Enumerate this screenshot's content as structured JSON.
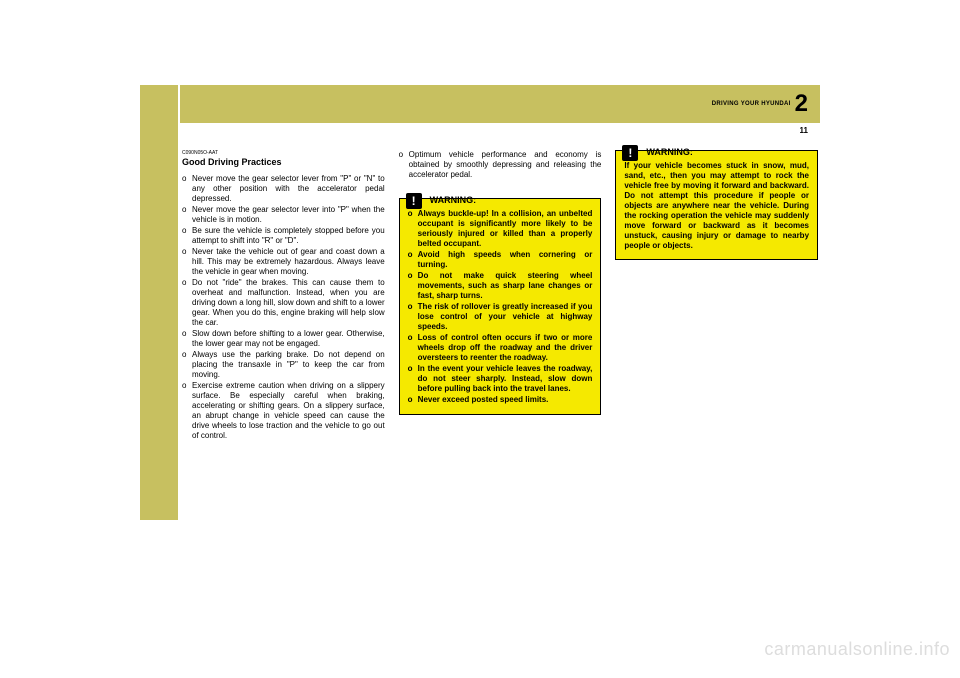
{
  "header": {
    "section_title": "DRIVING YOUR HYUNDAI",
    "section_number": "2",
    "page_number": "11"
  },
  "colors": {
    "band": "#c7c060",
    "warning_bg": "#f5e900",
    "border": "#000000",
    "watermark": "#dddddd"
  },
  "col1": {
    "code": "C090N05O-AAT",
    "heading": "Good Driving Practices",
    "items": [
      "Never move the gear selector lever from \"P\" or \"N\" to any other position with the accelerator pedal depressed.",
      "Never move the gear selector lever into \"P\" when the vehicle is in motion.",
      "Be sure the vehicle is completely stopped before you attempt to shift into \"R\" or \"D\".",
      "Never take the vehicle out of gear and coast down a hill. This may be extremely hazardous. Always leave the vehicle in gear when moving.",
      "Do not \"ride\" the brakes. This can cause them to overheat and malfunction. Instead, when you are driving down a long hill, slow down and shift to a lower gear. When you do this, engine braking will help slow the car.",
      "Slow down before shifting to a lower gear. Otherwise, the lower gear may not be engaged.",
      "Always use the parking brake. Do not depend on placing the transaxle in \"P\" to keep the car from moving.",
      "Exercise extreme caution when driving on a slippery surface. Be especially careful when braking, accelerating or shifting gears. On a slippery surface, an abrupt change in vehicle speed can cause the drive wheels to lose traction and the vehicle to go out of control."
    ]
  },
  "col2": {
    "items": [
      "Optimum vehicle performance and economy is obtained by smoothly depressing and releasing the accelerator pedal."
    ],
    "warning": {
      "label": "WARNING:",
      "items": [
        "Always buckle-up!  In a collision, an unbelted occupant is significantly more likely to be seriously injured or killed than a properly belted occupant.",
        "Avoid high speeds when cornering or turning.",
        "Do not make quick steering wheel movements, such as sharp lane changes or fast, sharp turns.",
        "The risk of rollover is greatly increased if you lose control of your vehicle at highway speeds.",
        "Loss of control often occurs if two or more wheels drop off the roadway and the driver oversteers to reenter the roadway.",
        "In the event your vehicle leaves the roadway, do not steer sharply. Instead, slow down before pulling back into the travel lanes.",
        "Never exceed posted speed limits."
      ]
    }
  },
  "col3": {
    "warning": {
      "label": "WARNING:",
      "text": "If your vehicle becomes stuck in snow, mud, sand, etc., then you may attempt to rock the vehicle free by moving it forward and backward. Do not attempt this procedure if people or objects are anywhere near the vehicle. During the rocking operation the vehicle may suddenly move forward or backward as it becomes unstuck, causing injury or damage to nearby people or objects."
    }
  },
  "watermark": "carmanualsonline.info"
}
